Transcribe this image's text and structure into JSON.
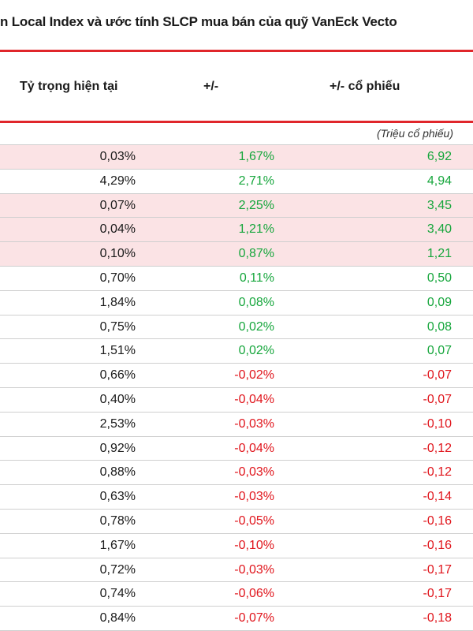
{
  "title": "n Local Index và ước tính SLCP mua bán của quỹ VanEck Vecto",
  "headers": {
    "weight": "Tỷ trọng hiện tại",
    "change_pct": "+/-",
    "change_shares": "+/- cổ phiếu"
  },
  "unit_note": "(Triệu cổ phiếu)",
  "colors": {
    "accent": "#e0262b",
    "positive": "#16a63c",
    "negative": "#e0141b",
    "highlight": "#fbe3e5"
  },
  "rows": [
    {
      "weight": "0,03%",
      "change_pct": "1,67%",
      "change_shares": "6,92",
      "highlight": true
    },
    {
      "weight": "4,29%",
      "change_pct": "2,71%",
      "change_shares": "4,94",
      "highlight": false
    },
    {
      "weight": "0,07%",
      "change_pct": "2,25%",
      "change_shares": "3,45",
      "highlight": true
    },
    {
      "weight": "0,04%",
      "change_pct": "1,21%",
      "change_shares": "3,40",
      "highlight": true
    },
    {
      "weight": "0,10%",
      "change_pct": "0,87%",
      "change_shares": "1,21",
      "highlight": true
    },
    {
      "weight": "0,70%",
      "change_pct": "0,11%",
      "change_shares": "0,50",
      "highlight": false
    },
    {
      "weight": "1,84%",
      "change_pct": "0,08%",
      "change_shares": "0,09",
      "highlight": false
    },
    {
      "weight": "0,75%",
      "change_pct": "0,02%",
      "change_shares": "0,08",
      "highlight": false
    },
    {
      "weight": "1,51%",
      "change_pct": "0,02%",
      "change_shares": "0,07",
      "highlight": false
    },
    {
      "weight": "0,66%",
      "change_pct": "-0,02%",
      "change_shares": "-0,07",
      "highlight": false
    },
    {
      "weight": "0,40%",
      "change_pct": "-0,04%",
      "change_shares": "-0,07",
      "highlight": false
    },
    {
      "weight": "2,53%",
      "change_pct": "-0,03%",
      "change_shares": "-0,10",
      "highlight": false
    },
    {
      "weight": "0,92%",
      "change_pct": "-0,04%",
      "change_shares": "-0,12",
      "highlight": false
    },
    {
      "weight": "0,88%",
      "change_pct": "-0,03%",
      "change_shares": "-0,12",
      "highlight": false
    },
    {
      "weight": "0,63%",
      "change_pct": "-0,03%",
      "change_shares": "-0,14",
      "highlight": false
    },
    {
      "weight": "0,78%",
      "change_pct": "-0,05%",
      "change_shares": "-0,16",
      "highlight": false
    },
    {
      "weight": "1,67%",
      "change_pct": "-0,10%",
      "change_shares": "-0,16",
      "highlight": false
    },
    {
      "weight": "0,72%",
      "change_pct": "-0,03%",
      "change_shares": "-0,17",
      "highlight": false
    },
    {
      "weight": "0,74%",
      "change_pct": "-0,06%",
      "change_shares": "-0,17",
      "highlight": false
    },
    {
      "weight": "0,84%",
      "change_pct": "-0,07%",
      "change_shares": "-0,18",
      "highlight": false
    }
  ]
}
